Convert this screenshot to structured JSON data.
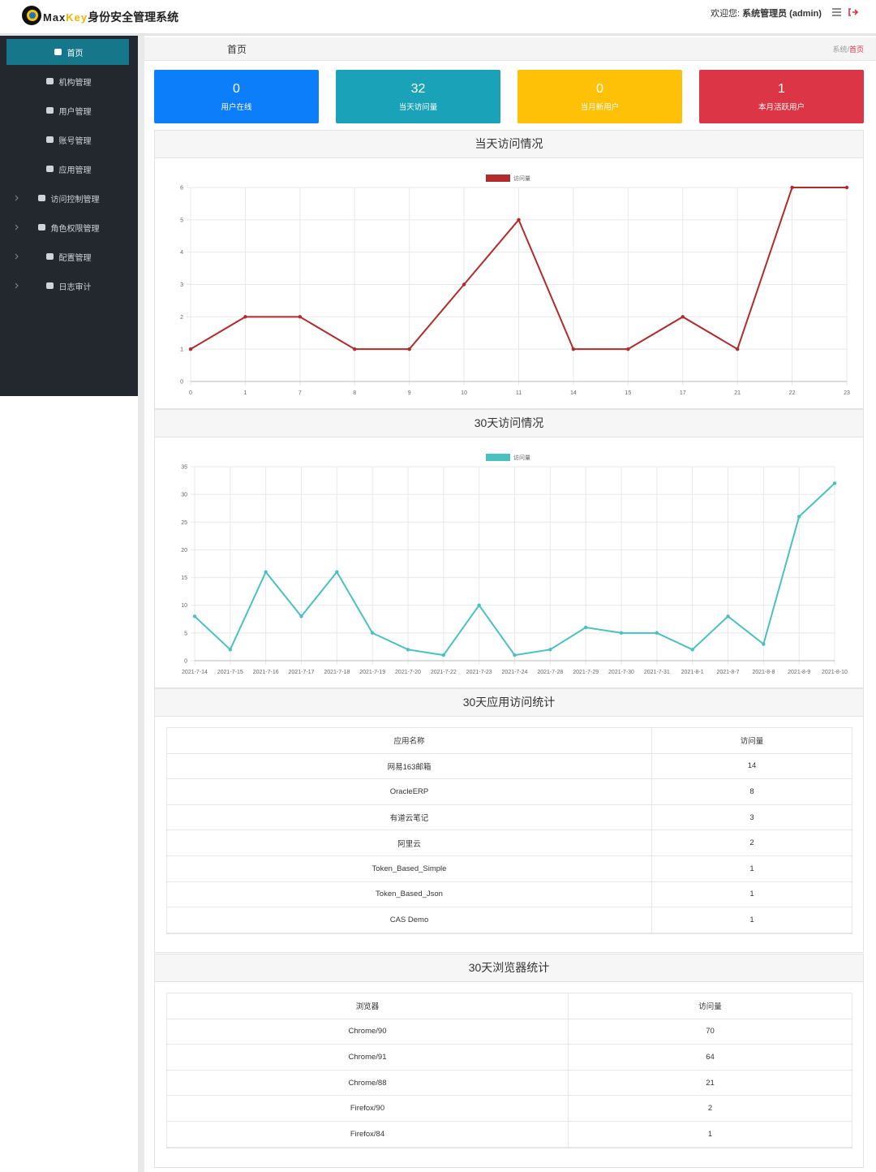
{
  "header": {
    "logo": {
      "part1": "Max",
      "part2": "Key",
      "system": "身份安全管理系统"
    },
    "welcome": "欢迎您:",
    "user": "系统管理员 (admin)"
  },
  "sidebar": {
    "items": [
      "首页",
      "机构管理",
      "用户管理",
      "账号管理",
      "应用管理",
      "访问控制管理",
      "角色权限管理",
      "配置管理",
      "日志审计"
    ]
  },
  "page": {
    "title": "首页",
    "breadcrumb": {
      "parent": "系统",
      "separator": "/",
      "current": "首页"
    }
  },
  "stats": [
    {
      "value": 0,
      "label": "用户在线",
      "color": "#0d7ef9"
    },
    {
      "value": 32,
      "label": "当天访问量",
      "color": "#1aa2b8"
    },
    {
      "value": 0,
      "label": "当月新用户",
      "color": "#fec107"
    },
    {
      "value": 1,
      "label": "本月活跃用户",
      "color": "#dc3545"
    }
  ],
  "charts": [
    {
      "type": "line",
      "title": "当天访问情况",
      "categories": [
        "0",
        "1",
        "7",
        "8",
        "9",
        "10",
        "11",
        "14",
        "15",
        "17",
        "21",
        "22",
        "23"
      ],
      "series": [
        {
          "name": "访问量",
          "color": "#b22a2a",
          "values": [
            1,
            2,
            2,
            1,
            1,
            3,
            5,
            1,
            1,
            2,
            1,
            6,
            6
          ]
        }
      ],
      "ylim": [
        0,
        6
      ],
      "yticks": [
        0,
        1,
        2,
        3,
        4,
        5,
        6
      ],
      "grid": true
    },
    {
      "type": "line",
      "title": "30天访问情况",
      "categories": [
        "2021-7-14",
        "2021-7-15",
        "2021-7-16",
        "2021-7-17",
        "2021-7-18",
        "2021-7-19",
        "2021-7-20",
        "2021-7-22",
        "2021-7-23",
        "2021-7-24",
        "2021-7-28",
        "2021-7-29",
        "2021-7-30",
        "2021-7-31",
        "2021-8-1",
        "2021-8-7",
        "2021-8-8",
        "2021-8-9",
        "2021-8-10"
      ],
      "series": [
        {
          "name": "访问量",
          "color": "#4bc0c0",
          "values": [
            8,
            2,
            16,
            8,
            16,
            5,
            2,
            1,
            10,
            1,
            2,
            6,
            5,
            5,
            2,
            8,
            3,
            26,
            32
          ]
        }
      ],
      "ylim": [
        0,
        35
      ],
      "yticks": [
        0,
        5,
        10,
        15,
        20,
        25,
        30,
        35
      ],
      "grid": true
    }
  ],
  "tables": [
    {
      "title": "30天应用访问统计",
      "headers": [
        "应用名称",
        "访问量"
      ],
      "rows": [
        [
          "网易163邮箱",
          14
        ],
        [
          "OracleERP",
          8
        ],
        [
          "有道云笔记",
          3
        ],
        [
          "阿里云",
          2
        ],
        [
          "Token_Based_Simple",
          1
        ],
        [
          "Token_Based_Json",
          1
        ],
        [
          "CAS Demo",
          1
        ]
      ]
    },
    {
      "title": "30天浏览器统计",
      "headers": [
        "浏览器",
        "访问量"
      ],
      "rows": [
        [
          "Chrome/90",
          70
        ],
        [
          "Chrome/91",
          64
        ],
        [
          "Chrome/88",
          21
        ],
        [
          "Firefox/90",
          2
        ],
        [
          "Firefox/84",
          1
        ]
      ]
    }
  ]
}
